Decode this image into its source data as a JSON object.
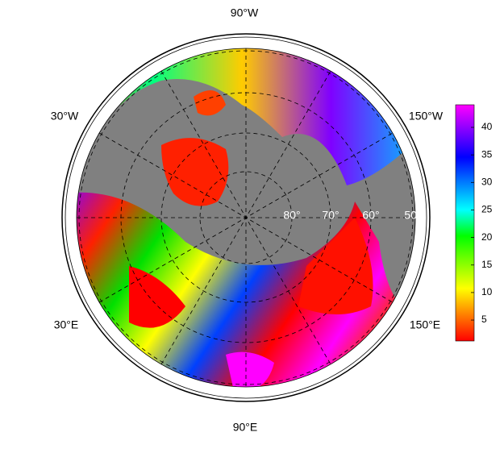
{
  "map": {
    "lon_labels": {
      "top": "90°W",
      "upper_left": "30°W",
      "upper_right": "150°W",
      "lower_left": "30°E",
      "lower_right": "150°E",
      "bottom": "90°E"
    },
    "lat_labels": [
      "80°",
      "70°",
      "60°",
      "50°"
    ],
    "colorbar": {
      "lim": [
        1.2,
        44.1
      ],
      "ticks": [
        5,
        10,
        15,
        20,
        25,
        30,
        35,
        40
      ],
      "colors": [
        "#ff0000",
        "#ff8000",
        "#ffff00",
        "#80ff00",
        "#00ff00",
        "#00ffff",
        "#0080ff",
        "#0000ff",
        "#8000ff",
        "#ff00ff"
      ]
    }
  }
}
